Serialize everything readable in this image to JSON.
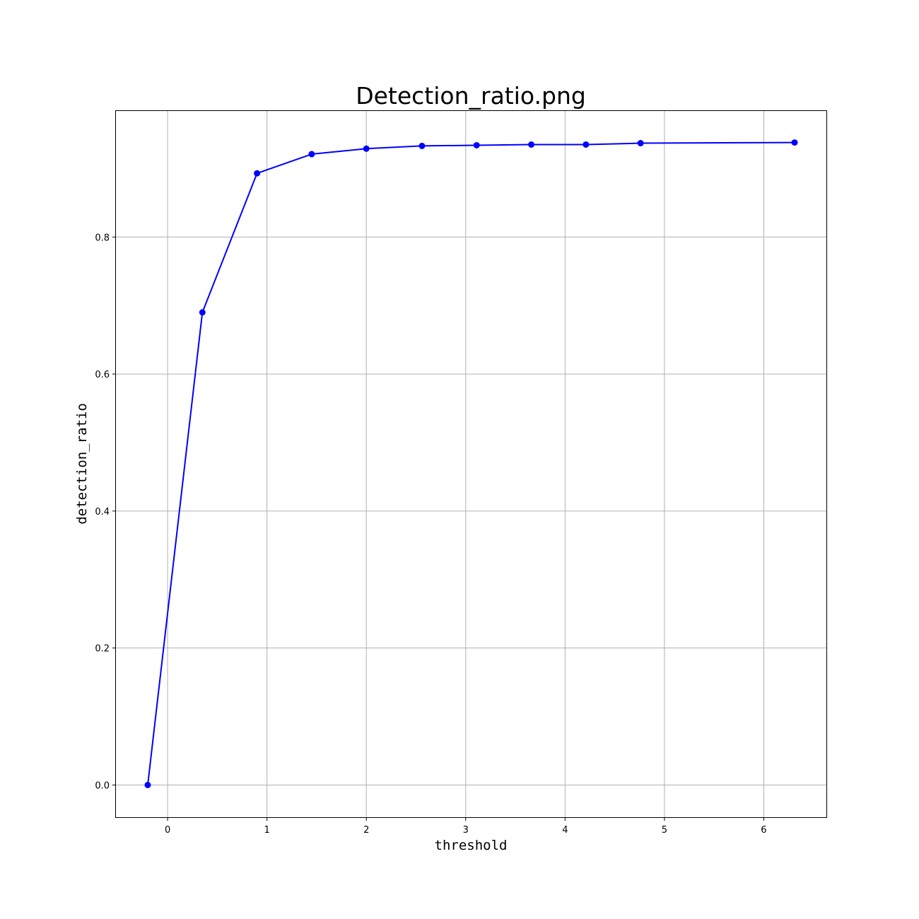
{
  "chart_data": {
    "type": "line",
    "title": "Detection_ratio.png",
    "xlabel": "threshold",
    "ylabel": "detection_ratio",
    "xlim": [
      -0.52,
      6.63
    ],
    "ylim": [
      -0.047,
      0.984
    ],
    "xticks": [
      0,
      1,
      2,
      3,
      4,
      5,
      6
    ],
    "xtick_labels": [
      "0",
      "1",
      "2",
      "3",
      "4",
      "5",
      "6"
    ],
    "yticks": [
      0.0,
      0.2,
      0.4,
      0.6,
      0.8
    ],
    "ytick_labels": [
      "0.0",
      "0.2",
      "0.4",
      "0.6",
      "0.8"
    ],
    "grid": true,
    "legend": "none",
    "series": [
      {
        "x": [
          -0.2,
          0.35,
          0.9,
          1.45,
          2.0,
          2.56,
          3.11,
          3.66,
          4.21,
          4.76,
          6.31
        ],
        "y": [
          0.0,
          0.69,
          0.893,
          0.921,
          0.929,
          0.933,
          0.934,
          0.935,
          0.935,
          0.937,
          0.938
        ],
        "color": "#0000ff",
        "marker": "circle"
      }
    ]
  }
}
